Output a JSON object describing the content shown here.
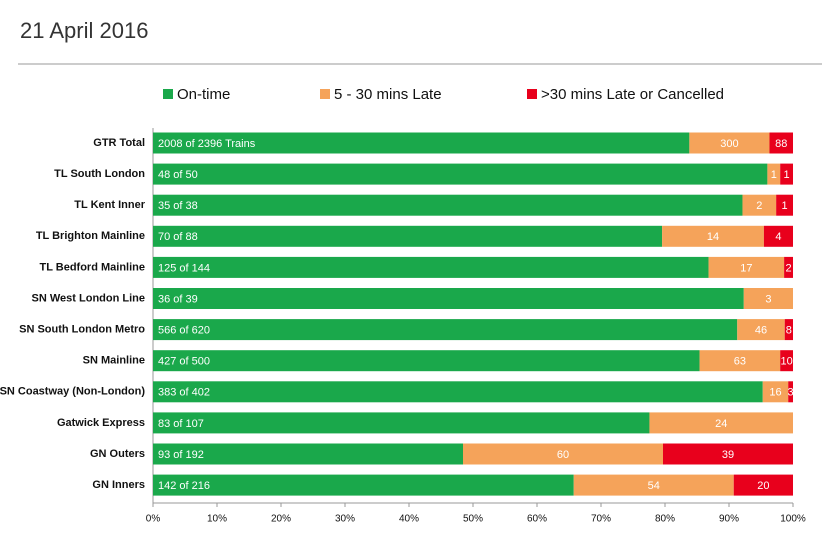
{
  "header": {
    "title": "21 April 2016"
  },
  "chart_data": {
    "type": "stacked_percent_bar",
    "orientation": "horizontal",
    "categories": [
      "GTR Total",
      "TL South London",
      "TL Kent Inner",
      "TL Brighton Mainline",
      "TL Bedford Mainline",
      "SN West London Line",
      "SN South London Metro",
      "SN Mainline",
      "SN Coastway (Non-London)",
      "Gatwick Express",
      "GN Outers",
      "GN Inners"
    ],
    "series": [
      {
        "name": "On-time",
        "color": "#1aa84b",
        "values": [
          2008,
          48,
          35,
          70,
          125,
          36,
          566,
          427,
          383,
          83,
          93,
          142
        ],
        "value_labels": [
          "2008 of 2396 Trains",
          "48 of 50",
          "35 of 38",
          "70 of 88",
          "125 of 144",
          "36 of 39",
          "566 of 620",
          "427 of 500",
          "383 of 402",
          "83 of 107",
          "93 of 192",
          "142 of 216"
        ]
      },
      {
        "name": "5 - 30 mins Late",
        "color": "#f5a35a",
        "values": [
          300,
          1,
          2,
          14,
          17,
          3,
          46,
          63,
          16,
          24,
          60,
          54
        ]
      },
      {
        "name": ">30 mins Late or Cancelled",
        "color": "#e8001c",
        "values": [
          88,
          1,
          1,
          4,
          2,
          null,
          8,
          10,
          3,
          null,
          39,
          20
        ]
      }
    ],
    "xlim": [
      0,
      100
    ],
    "xticks": [
      {
        "value": 0,
        "label": "0%"
      },
      {
        "value": 10,
        "label": "10%"
      },
      {
        "value": 20,
        "label": "20%"
      },
      {
        "value": 30,
        "label": "30%"
      },
      {
        "value": 40,
        "label": "40%"
      },
      {
        "value": 50,
        "label": "50%"
      },
      {
        "value": 60,
        "label": "60%"
      },
      {
        "value": 70,
        "label": "70%"
      },
      {
        "value": 80,
        "label": "80%"
      },
      {
        "value": 90,
        "label": "90%"
      },
      {
        "value": 100,
        "label": "100%"
      }
    ],
    "grid": false,
    "legend": "top"
  }
}
